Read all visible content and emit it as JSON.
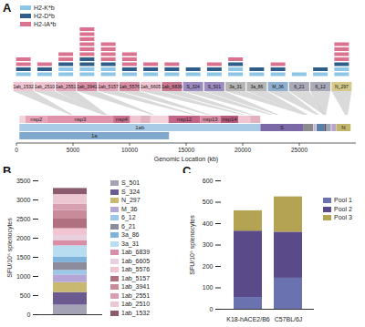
{
  "diagram": {
    "panel_label": "A",
    "legend": [
      {
        "name": "H2-K*b",
        "color": "#8ec6e8"
      },
      {
        "name": "H2-D*b",
        "color": "#2f5d8a"
      },
      {
        "name": "H2-IA*b",
        "color": "#d9738f"
      }
    ],
    "epitopes": [
      {
        "label": "1ab_1532",
        "color": "#f0c4d0",
        "position": 4859,
        "markers": {
          "H2-K*b": 1,
          "H2-D*b": 1,
          "H2-IA*b": 2
        }
      },
      {
        "label": "1ab_2510",
        "color": "#f0c4d0",
        "position": 7793,
        "markers": {
          "H2-K*b": 1,
          "H2-D*b": 1,
          "H2-IA*b": 1
        }
      },
      {
        "label": "1ab_2551",
        "color": "#e6a9bb",
        "position": 7916,
        "markers": {
          "H2-K*b": 2,
          "H2-D*b": 1,
          "H2-IA*b": 2
        }
      },
      {
        "label": "1ab_3941",
        "color": "#d98ea5",
        "position": 12086,
        "markers": {
          "H2-K*b": 2,
          "H2-D*b": 2,
          "H2-IA*b": 6
        }
      },
      {
        "label": "1ab_5157",
        "color": "#e6a9bb",
        "position": 15734,
        "markers": {
          "H2-K*b": 2,
          "H2-D*b": 1,
          "H2-IA*b": 4
        }
      },
      {
        "label": "1ab_5576",
        "color": "#d98ea5",
        "position": 16991,
        "markers": {
          "H2-K*b": 1,
          "H2-D*b": 1,
          "H2-IA*b": 3
        }
      },
      {
        "label": "1ab_6605",
        "color": "#f0c4d0",
        "position": 20078,
        "markers": {
          "H2-K*b": 1,
          "H2-D*b": 1,
          "H2-IA*b": 1
        }
      },
      {
        "label": "1ab_6839",
        "color": "#c97892",
        "position": 20780,
        "markers": {
          "H2-K*b": 1,
          "H2-D*b": 1,
          "H2-IA*b": 1
        }
      },
      {
        "label": "S_324",
        "color": "#9d8cc2",
        "position": 22532,
        "markers": {
          "H2-K*b": 1,
          "H2-D*b": 1,
          "H2-IA*b": 0
        }
      },
      {
        "label": "S_501",
        "color": "#9d8cc2",
        "position": 23063,
        "markers": {
          "H2-K*b": 1,
          "H2-D*b": 1,
          "H2-IA*b": 1
        }
      },
      {
        "label": "3a_31",
        "color": "#b5b5b5",
        "position": 25483,
        "markers": {
          "H2-K*b": 2,
          "H2-D*b": 1,
          "H2-IA*b": 1
        }
      },
      {
        "label": "3a_86",
        "color": "#b5b5b5",
        "position": 25648,
        "markers": {
          "H2-K*b": 1,
          "H2-D*b": 1,
          "H2-IA*b": 0
        }
      },
      {
        "label": "M_36",
        "color": "#8fb0d0",
        "position": 26628,
        "markers": {
          "H2-K*b": 1,
          "H2-D*b": 1,
          "H2-IA*b": 1
        }
      },
      {
        "label": "6_21",
        "color": "#a9a9b8",
        "position": 27262,
        "markers": {
          "H2-K*b": 1,
          "H2-D*b": 0,
          "H2-IA*b": 0
        }
      },
      {
        "label": "6_12",
        "color": "#a9a9b8",
        "position": 27235,
        "markers": {
          "H2-K*b": 1,
          "H2-D*b": 1,
          "H2-IA*b": 0
        }
      },
      {
        "label": "N_297",
        "color": "#d4c98a",
        "position": 29162,
        "markers": {
          "H2-K*b": 2,
          "H2-D*b": 1,
          "H2-IA*b": 4
        }
      }
    ],
    "genome": {
      "x_label": "Genomic Location (kb)",
      "xlim": [
        0,
        30000
      ],
      "xticks": [
        0,
        5000,
        10000,
        15000,
        20000,
        25000
      ],
      "tracks": [
        [
          {
            "start": 266,
            "end": 805,
            "color": "#f3d3dc"
          },
          {
            "label": "nsp2",
            "start": 806,
            "end": 2719,
            "color": "#e8a5b8"
          },
          {
            "label": "nsp3",
            "start": 2720,
            "end": 8554,
            "color": "#e094ab"
          },
          {
            "label": "nsp4",
            "start": 8555,
            "end": 10054,
            "color": "#c9708f"
          },
          {
            "start": 10055,
            "end": 10972,
            "color": "#efc6d2"
          },
          {
            "start": 10973,
            "end": 11842,
            "color": "#e3b0c0"
          },
          {
            "start": 11843,
            "end": 13441,
            "color": "#f3d3dc"
          },
          {
            "label": "nsp12",
            "start": 13442,
            "end": 16236,
            "color": "#c46488"
          },
          {
            "label": "nsp13",
            "start": 16237,
            "end": 18039,
            "color": "#d98ea5"
          },
          {
            "label": "nsp14",
            "start": 18040,
            "end": 19620,
            "color": "#b85a7d"
          },
          {
            "start": 19621,
            "end": 20658,
            "color": "#efc6d2"
          },
          {
            "start": 20659,
            "end": 21552,
            "color": "#e3b0c0"
          }
        ],
        [
          {
            "label": "1ab",
            "start": 266,
            "end": 21555,
            "color": "#a9cbe6"
          },
          {
            "label": "S",
            "start": 21563,
            "end": 25384,
            "color": "#7b68a6"
          },
          {
            "start": 25393,
            "end": 26220,
            "color": "#8b8b8b"
          },
          {
            "start": 26245,
            "end": 26472,
            "color": "#c9b4d6"
          },
          {
            "start": 26523,
            "end": 27191,
            "color": "#5a7fa8"
          },
          {
            "start": 27202,
            "end": 27387,
            "color": "#555566"
          },
          {
            "start": 27394,
            "end": 27759,
            "color": "#9aa5b5"
          },
          {
            "start": 27756,
            "end": 27887,
            "color": "#c9b4d6"
          },
          {
            "start": 27894,
            "end": 28259,
            "color": "#b7a6c9"
          },
          {
            "label": "N",
            "start": 28274,
            "end": 29533,
            "color": "#c2b56a"
          }
        ],
        [
          {
            "label": "1a",
            "start": 266,
            "end": 13483,
            "color": "#7fa8cc"
          }
        ]
      ]
    }
  },
  "chart_data": [
    {
      "panel_label": "B",
      "type": "bar",
      "stacked": true,
      "legend": "right",
      "y_label": "SFU/10⁶ splenocytes",
      "ylim": [
        0,
        3500
      ],
      "yticks": [
        0,
        500,
        1000,
        1500,
        2000,
        2500,
        3000,
        3500
      ],
      "categories": [
        null
      ],
      "series": [
        {
          "name": "S_501",
          "color": "#a3a3b5",
          "values": [
            250
          ]
        },
        {
          "name": "S_324",
          "color": "#6a5a90",
          "values": [
            330
          ]
        },
        {
          "name": "N_297",
          "color": "#c8b870",
          "values": [
            260
          ]
        },
        {
          "name": "M_36",
          "color": "#b4a6d6",
          "values": [
            200
          ]
        },
        {
          "name": "6_12",
          "color": "#9cc7e6",
          "values": [
            120
          ]
        },
        {
          "name": "6_21",
          "color": "#8c8c9c",
          "values": [
            200
          ]
        },
        {
          "name": "3a_86",
          "color": "#7fb3dc",
          "values": [
            140
          ]
        },
        {
          "name": "3a_31",
          "color": "#b8dcf0",
          "values": [
            300
          ]
        },
        {
          "name": "1ab_6839",
          "color": "#d98ea5",
          "values": [
            140
          ]
        },
        {
          "name": "1ab_6605",
          "color": "#e8d0e0",
          "values": [
            130
          ]
        },
        {
          "name": "1ab_5576",
          "color": "#f0c4d0",
          "values": [
            180
          ]
        },
        {
          "name": "1ab_5157",
          "color": "#b07080",
          "values": [
            250
          ]
        },
        {
          "name": "1ab_3941",
          "color": "#c98a9a",
          "values": [
            220
          ]
        },
        {
          "name": "1ab_2551",
          "color": "#d6a0b0",
          "values": [
            170
          ]
        },
        {
          "name": "1ab_2510",
          "color": "#ecc8d2",
          "values": [
            250
          ]
        },
        {
          "name": "1ab_1532",
          "color": "#8c5a6e",
          "values": [
            160
          ]
        }
      ]
    },
    {
      "panel_label": "C",
      "type": "bar",
      "stacked": true,
      "legend": "right",
      "y_label": "SFU/10⁶ splenocytes",
      "ylim": [
        0,
        600
      ],
      "yticks": [
        0,
        100,
        200,
        300,
        400,
        500,
        600
      ],
      "categories": [
        "K18-hACE2/B6",
        "C57BL/6J"
      ],
      "series": [
        {
          "name": "Pool 1",
          "color": "#6a72b0",
          "values": [
            55,
            145
          ]
        },
        {
          "name": "Pool 2",
          "color": "#5a4a8a",
          "values": [
            310,
            215
          ]
        },
        {
          "name": "Pool 3",
          "color": "#b3a352",
          "values": [
            95,
            165
          ]
        }
      ]
    }
  ]
}
